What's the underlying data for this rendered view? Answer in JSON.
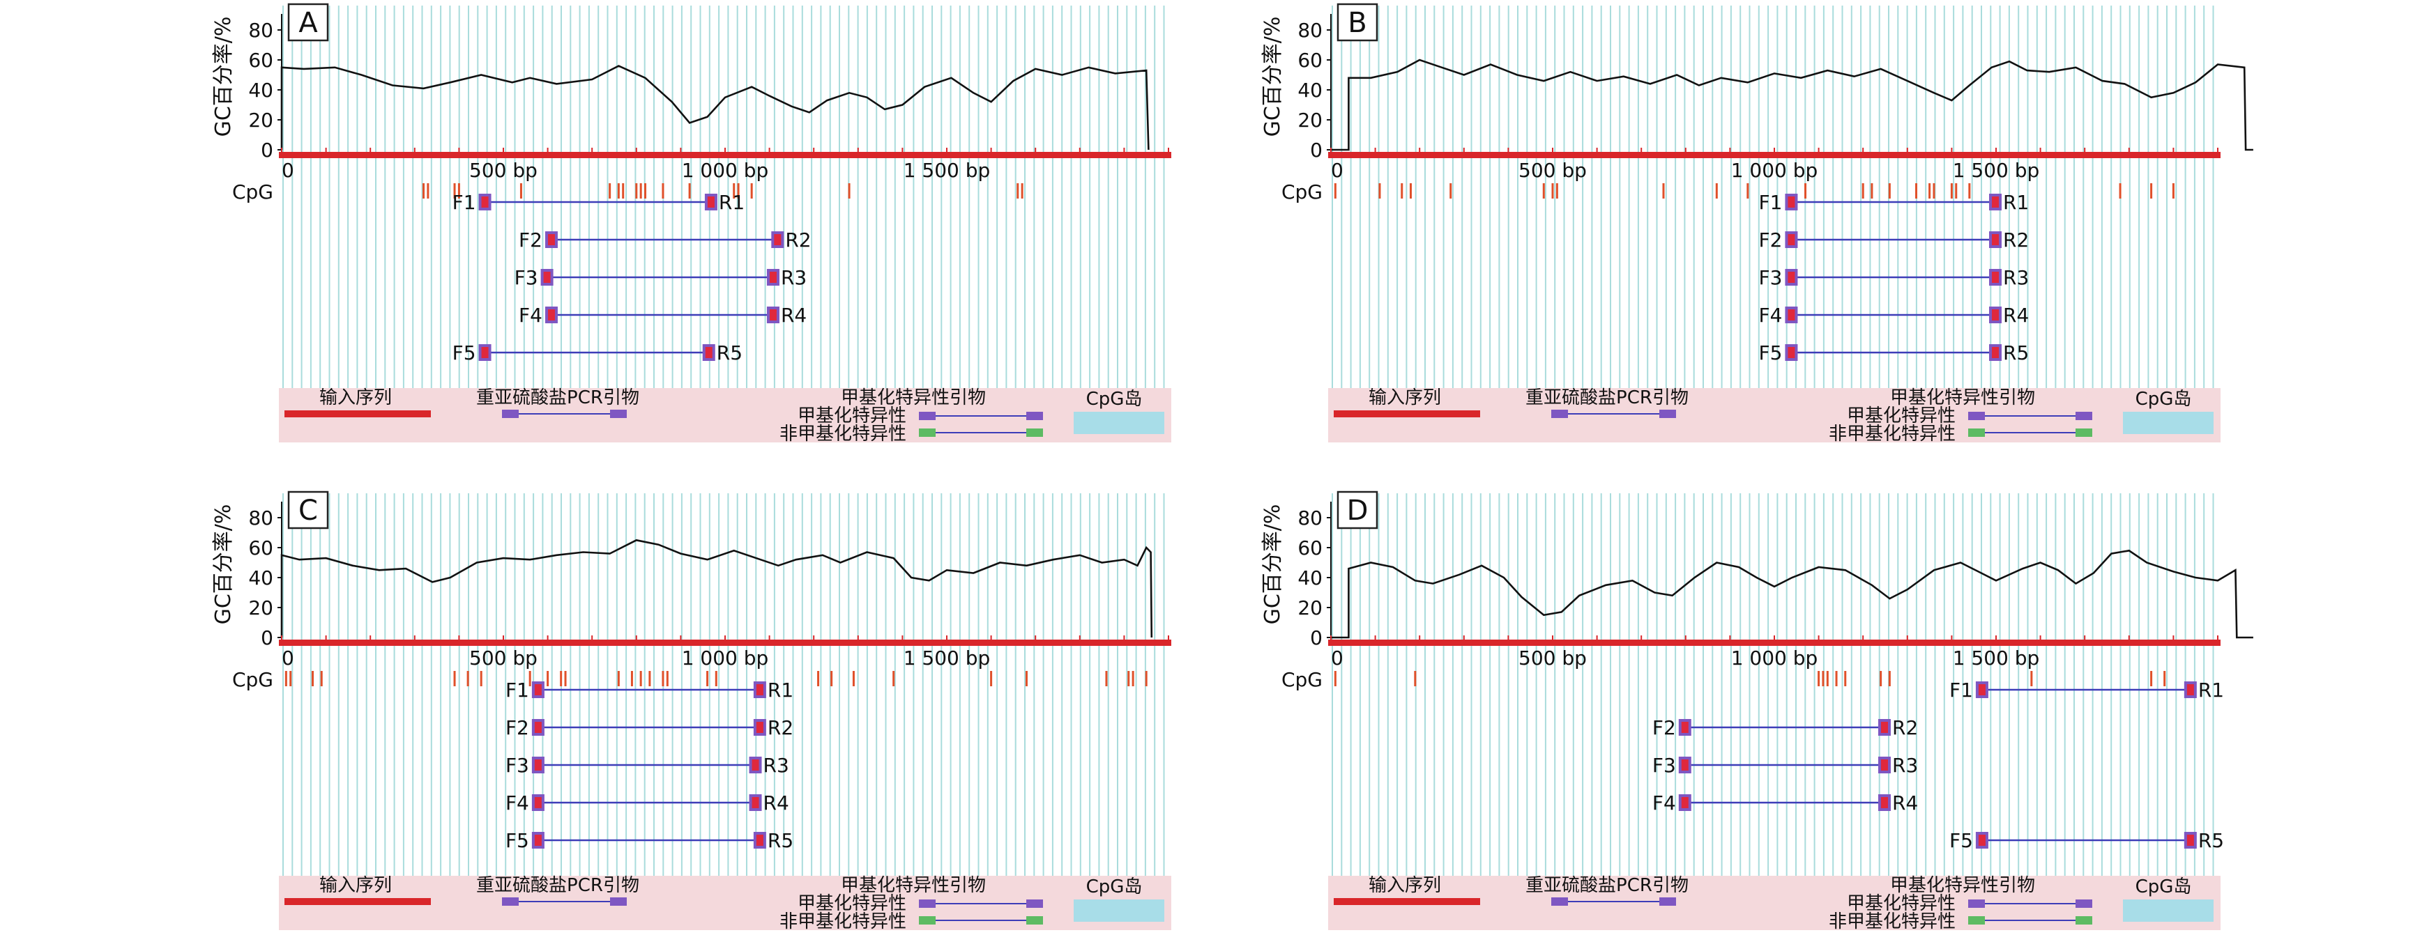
{
  "common": {
    "ylabel": "GC百分率/%",
    "y_ticks": [
      "0",
      "20",
      "40",
      "60",
      "80"
    ],
    "cpg_label": "CpG",
    "legend": {
      "input_sequence": "输入序列",
      "bisulfite_pcr_primer": "重亚硫酸盐PCR引物",
      "methylation_specific_primer": "甲基化特异性引物",
      "methylated": "甲基化特异性",
      "unmethylated": "非甲基化特异性",
      "cpg_island": "CpG岛"
    },
    "colors": {
      "sequence_bar": "#d9262a",
      "grid_line": "#a9dcdc",
      "legend_bg": "#f4d9dc",
      "primer_box": "#7e57c2",
      "primer_red": "#e0283c",
      "primer_line": "#3d3db8",
      "unmethylated_box": "#5dbb63",
      "cpg_island": "#a8dde8",
      "cpg_tick": "#e0502a"
    }
  },
  "panels": [
    {
      "id": "A",
      "x_ticks": [
        {
          "pos": 0,
          "label": "0"
        },
        {
          "pos": 500,
          "label": "500 bp"
        },
        {
          "pos": 1000,
          "label": "1 000 bp"
        },
        {
          "pos": 1500,
          "label": "1 500 bp"
        }
      ],
      "seq_length": 1990,
      "gc_profile": [
        [
          0,
          0
        ],
        [
          0,
          55
        ],
        [
          50,
          54
        ],
        [
          120,
          55
        ],
        [
          180,
          50
        ],
        [
          250,
          43
        ],
        [
          320,
          41
        ],
        [
          380,
          45
        ],
        [
          450,
          50
        ],
        [
          520,
          45
        ],
        [
          560,
          48
        ],
        [
          620,
          44
        ],
        [
          700,
          47
        ],
        [
          760,
          56
        ],
        [
          820,
          48
        ],
        [
          880,
          32
        ],
        [
          920,
          18
        ],
        [
          960,
          22
        ],
        [
          1000,
          35
        ],
        [
          1060,
          42
        ],
        [
          1100,
          36
        ],
        [
          1150,
          29
        ],
        [
          1190,
          25
        ],
        [
          1230,
          33
        ],
        [
          1280,
          38
        ],
        [
          1320,
          35
        ],
        [
          1360,
          27
        ],
        [
          1400,
          30
        ],
        [
          1450,
          42
        ],
        [
          1510,
          48
        ],
        [
          1560,
          38
        ],
        [
          1600,
          32
        ],
        [
          1650,
          46
        ],
        [
          1700,
          54
        ],
        [
          1760,
          50
        ],
        [
          1820,
          55
        ],
        [
          1880,
          51
        ],
        [
          1950,
          53
        ],
        [
          1955,
          0
        ]
      ],
      "cpg_sites": [
        320,
        330,
        390,
        400,
        540,
        740,
        760,
        770,
        800,
        810,
        820,
        860,
        920,
        1020,
        1030,
        1060,
        1280,
        1660,
        1670
      ],
      "primers": [
        {
          "f": "F1",
          "r": "R1",
          "start": 460,
          "end": 970
        },
        {
          "f": "F2",
          "r": "R2",
          "start": 610,
          "end": 1120
        },
        {
          "f": "F3",
          "r": "R3",
          "start": 600,
          "end": 1110
        },
        {
          "f": "F4",
          "r": "R4",
          "start": 610,
          "end": 1110
        },
        {
          "f": "F5",
          "r": "R5",
          "start": 460,
          "end": 965
        }
      ]
    },
    {
      "id": "B",
      "x_ticks": [
        {
          "pos": 0,
          "label": "0"
        },
        {
          "pos": 500,
          "label": "500 bp"
        },
        {
          "pos": 1000,
          "label": "1 000 bp"
        },
        {
          "pos": 1500,
          "label": "1 500 bp"
        }
      ],
      "seq_length": 2000,
      "gc_profile": [
        [
          0,
          0
        ],
        [
          40,
          0
        ],
        [
          40,
          48
        ],
        [
          90,
          48
        ],
        [
          150,
          52
        ],
        [
          200,
          60
        ],
        [
          250,
          55
        ],
        [
          300,
          50
        ],
        [
          360,
          57
        ],
        [
          420,
          50
        ],
        [
          480,
          46
        ],
        [
          540,
          52
        ],
        [
          600,
          46
        ],
        [
          660,
          49
        ],
        [
          720,
          44
        ],
        [
          780,
          50
        ],
        [
          830,
          43
        ],
        [
          880,
          48
        ],
        [
          940,
          45
        ],
        [
          1000,
          51
        ],
        [
          1060,
          48
        ],
        [
          1120,
          53
        ],
        [
          1180,
          49
        ],
        [
          1240,
          54
        ],
        [
          1300,
          46
        ],
        [
          1360,
          38
        ],
        [
          1400,
          33
        ],
        [
          1440,
          43
        ],
        [
          1490,
          55
        ],
        [
          1530,
          59
        ],
        [
          1570,
          53
        ],
        [
          1620,
          52
        ],
        [
          1680,
          55
        ],
        [
          1740,
          46
        ],
        [
          1790,
          44
        ],
        [
          1850,
          35
        ],
        [
          1900,
          38
        ],
        [
          1950,
          45
        ],
        [
          2000,
          57
        ],
        [
          2060,
          55
        ],
        [
          2063,
          0
        ],
        [
          2080,
          0
        ]
      ],
      "cpg_sites": [
        10,
        110,
        160,
        180,
        270,
        480,
        500,
        510,
        750,
        870,
        940,
        1070,
        1200,
        1220,
        1260,
        1320,
        1350,
        1360,
        1400,
        1410,
        1440,
        1780,
        1850,
        1900
      ],
      "primers": [
        {
          "f": "F1",
          "r": "R1",
          "start": 1040,
          "end": 1500
        },
        {
          "f": "F2",
          "r": "R2",
          "start": 1040,
          "end": 1500
        },
        {
          "f": "F3",
          "r": "R3",
          "start": 1040,
          "end": 1500
        },
        {
          "f": "F4",
          "r": "R4",
          "start": 1040,
          "end": 1500
        },
        {
          "f": "F5",
          "r": "R5",
          "start": 1040,
          "end": 1500
        }
      ]
    },
    {
      "id": "C",
      "x_ticks": [
        {
          "pos": 0,
          "label": "0"
        },
        {
          "pos": 500,
          "label": "500 bp"
        },
        {
          "pos": 1000,
          "label": "1 000 bp"
        },
        {
          "pos": 1500,
          "label": "1 500 bp"
        }
      ],
      "seq_length": 1990,
      "gc_profile": [
        [
          0,
          0
        ],
        [
          0,
          55
        ],
        [
          40,
          52
        ],
        [
          100,
          53
        ],
        [
          160,
          48
        ],
        [
          220,
          45
        ],
        [
          280,
          46
        ],
        [
          340,
          37
        ],
        [
          380,
          40
        ],
        [
          440,
          50
        ],
        [
          500,
          53
        ],
        [
          560,
          52
        ],
        [
          620,
          55
        ],
        [
          680,
          57
        ],
        [
          740,
          56
        ],
        [
          800,
          65
        ],
        [
          850,
          62
        ],
        [
          900,
          56
        ],
        [
          960,
          52
        ],
        [
          1020,
          58
        ],
        [
          1080,
          52
        ],
        [
          1120,
          48
        ],
        [
          1160,
          52
        ],
        [
          1220,
          55
        ],
        [
          1260,
          50
        ],
        [
          1320,
          57
        ],
        [
          1380,
          53
        ],
        [
          1420,
          40
        ],
        [
          1460,
          38
        ],
        [
          1500,
          45
        ],
        [
          1560,
          43
        ],
        [
          1620,
          50
        ],
        [
          1680,
          48
        ],
        [
          1740,
          52
        ],
        [
          1800,
          55
        ],
        [
          1850,
          50
        ],
        [
          1900,
          52
        ],
        [
          1930,
          48
        ],
        [
          1950,
          60
        ],
        [
          1960,
          57
        ],
        [
          1962,
          0
        ]
      ],
      "cpg_sites": [
        10,
        20,
        70,
        90,
        390,
        420,
        450,
        560,
        600,
        630,
        640,
        760,
        790,
        810,
        830,
        860,
        870,
        960,
        980,
        1210,
        1240,
        1290,
        1380,
        1600,
        1680,
        1860,
        1910,
        1920,
        1950
      ],
      "primers": [
        {
          "f": "F1",
          "r": "R1",
          "start": 580,
          "end": 1080
        },
        {
          "f": "F2",
          "r": "R2",
          "start": 580,
          "end": 1080
        },
        {
          "f": "F3",
          "r": "R3",
          "start": 580,
          "end": 1070
        },
        {
          "f": "F4",
          "r": "R4",
          "start": 580,
          "end": 1070
        },
        {
          "f": "F5",
          "r": "R5",
          "start": 580,
          "end": 1080
        }
      ]
    },
    {
      "id": "D",
      "x_ticks": [
        {
          "pos": 0,
          "label": "0"
        },
        {
          "pos": 500,
          "label": "500 bp"
        },
        {
          "pos": 1000,
          "label": "1 000 bp"
        },
        {
          "pos": 1500,
          "label": "1 500 bp"
        }
      ],
      "seq_length": 2000,
      "gc_profile": [
        [
          0,
          0
        ],
        [
          40,
          0
        ],
        [
          40,
          46
        ],
        [
          90,
          50
        ],
        [
          140,
          47
        ],
        [
          190,
          38
        ],
        [
          230,
          36
        ],
        [
          290,
          42
        ],
        [
          340,
          48
        ],
        [
          390,
          40
        ],
        [
          430,
          27
        ],
        [
          480,
          15
        ],
        [
          520,
          17
        ],
        [
          560,
          28
        ],
        [
          620,
          35
        ],
        [
          680,
          38
        ],
        [
          730,
          30
        ],
        [
          770,
          28
        ],
        [
          820,
          40
        ],
        [
          870,
          50
        ],
        [
          920,
          47
        ],
        [
          960,
          40
        ],
        [
          1000,
          34
        ],
        [
          1040,
          40
        ],
        [
          1100,
          47
        ],
        [
          1160,
          45
        ],
        [
          1220,
          35
        ],
        [
          1260,
          26
        ],
        [
          1300,
          32
        ],
        [
          1360,
          45
        ],
        [
          1420,
          50
        ],
        [
          1460,
          44
        ],
        [
          1500,
          38
        ],
        [
          1560,
          46
        ],
        [
          1600,
          50
        ],
        [
          1640,
          45
        ],
        [
          1680,
          36
        ],
        [
          1720,
          43
        ],
        [
          1760,
          56
        ],
        [
          1800,
          58
        ],
        [
          1840,
          50
        ],
        [
          1900,
          44
        ],
        [
          1950,
          40
        ],
        [
          2000,
          38
        ],
        [
          2040,
          45
        ],
        [
          2043,
          0
        ],
        [
          2080,
          0
        ]
      ],
      "cpg_sites": [
        10,
        190,
        1100,
        1110,
        1120,
        1140,
        1160,
        1240,
        1260,
        1580,
        1850,
        1880
      ],
      "primers": [
        {
          "f": "F1",
          "r": "R1",
          "start": 1470,
          "end": 1940
        },
        {
          "f": "F2",
          "r": "R2",
          "start": 800,
          "end": 1250
        },
        {
          "f": "F3",
          "r": "R3",
          "start": 800,
          "end": 1250
        },
        {
          "f": "F4",
          "r": "R4",
          "start": 800,
          "end": 1250
        },
        {
          "f": "F5",
          "r": "R5",
          "start": 1470,
          "end": 1940
        }
      ]
    }
  ]
}
